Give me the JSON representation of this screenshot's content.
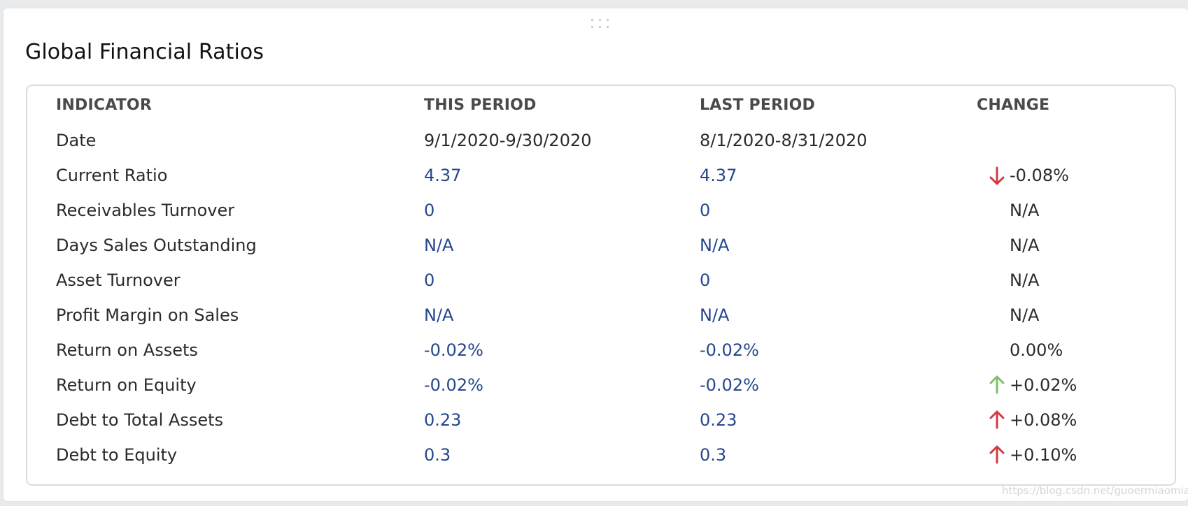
{
  "widget": {
    "title": "Global Financial Ratios"
  },
  "table": {
    "headers": [
      "INDICATOR",
      "THIS PERIOD",
      "LAST PERIOD",
      "CHANGE"
    ],
    "rows": [
      {
        "indicator": "Date",
        "this_period": "9/1/2020-9/30/2020",
        "last_period": "8/1/2020-8/31/2020",
        "change": "",
        "trend": "none"
      },
      {
        "indicator": "Current Ratio",
        "this_period": "4.37",
        "last_period": "4.37",
        "change": "-0.08%",
        "trend": "down"
      },
      {
        "indicator": "Receivables Turnover",
        "this_period": "0",
        "last_period": "0",
        "change": "N/A",
        "trend": "none"
      },
      {
        "indicator": "Days Sales Outstanding",
        "this_period": "N/A",
        "last_period": "N/A",
        "change": "N/A",
        "trend": "none"
      },
      {
        "indicator": "Asset Turnover",
        "this_period": "0",
        "last_period": "0",
        "change": "N/A",
        "trend": "none"
      },
      {
        "indicator": "Profit Margin on Sales",
        "this_period": "N/A",
        "last_period": "N/A",
        "change": "N/A",
        "trend": "none"
      },
      {
        "indicator": "Return on Assets",
        "this_period": "-0.02%",
        "last_period": "-0.02%",
        "change": "0.00%",
        "trend": "none"
      },
      {
        "indicator": "Return on Equity",
        "this_period": "-0.02%",
        "last_period": "-0.02%",
        "change": "+0.02%",
        "trend": "up-good"
      },
      {
        "indicator": "Debt to Total Assets",
        "this_period": "0.23",
        "last_period": "0.23",
        "change": "+0.08%",
        "trend": "up-bad"
      },
      {
        "indicator": "Debt to Equity",
        "this_period": "0.3",
        "last_period": "0.3",
        "change": "+0.10%",
        "trend": "up-bad"
      }
    ]
  },
  "icons": {
    "down": "arrow-down-icon",
    "up-good": "arrow-up-icon",
    "up-bad": "arrow-up-icon",
    "drag": "drag-handle-icon"
  },
  "colors": {
    "value_blue": "#26478e",
    "arrow_red": "#d13a45",
    "arrow_green": "#7ec06a",
    "border": "#dadcdf"
  },
  "watermark": "https://blog.csdn.net/guoermiaomiao"
}
